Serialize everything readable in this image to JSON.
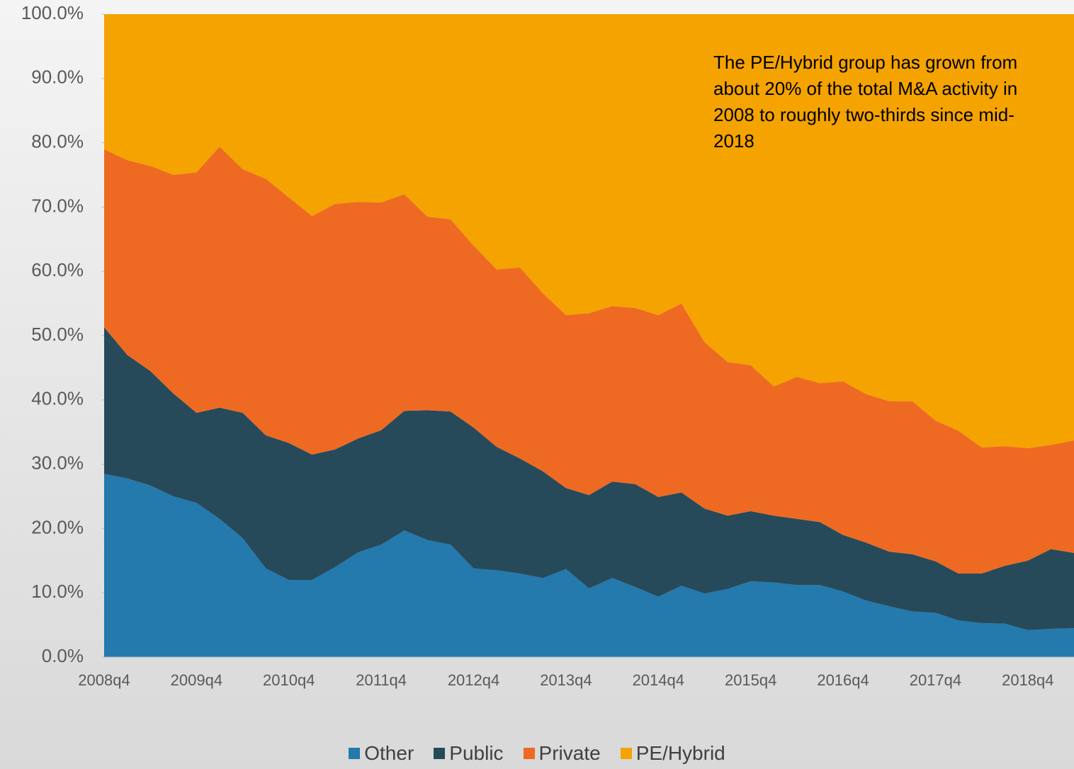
{
  "chart_data": {
    "type": "stacked_area",
    "annotation": "The PE/Hybrid group has grown from about 20% of the total M&A activity in 2008 to roughly two-thirds since mid-2018",
    "categories": [
      "2008q4",
      null,
      null,
      null,
      "2009q4",
      null,
      null,
      null,
      "2010q4",
      null,
      null,
      null,
      "2011q4",
      null,
      null,
      null,
      "2012q4",
      null,
      null,
      null,
      "2013q4",
      null,
      null,
      null,
      "2014q4",
      null,
      null,
      null,
      "2015q4",
      null,
      null,
      null,
      "2016q4",
      null,
      null,
      null,
      "2017q4",
      null,
      null,
      null,
      "2018q4",
      null,
      null
    ],
    "series": [
      {
        "name": "Other",
        "color": "#2479ad",
        "values": [
          28.5,
          27.8,
          26.7,
          25.0,
          24.0,
          21.5,
          18.5,
          13.8,
          12.0,
          12.0,
          14.0,
          16.3,
          17.5,
          19.7,
          18.2,
          17.5,
          13.8,
          13.5,
          13.0,
          12.3,
          13.7,
          10.7,
          12.3,
          10.9,
          9.4,
          11.1,
          9.9,
          10.6,
          11.8,
          11.6,
          11.2,
          11.2,
          10.2,
          8.8,
          7.9,
          7.1,
          6.9,
          5.7,
          5.3,
          5.2,
          4.2,
          4.4,
          4.5
        ]
      },
      {
        "name": "Public",
        "color": "#264a5a",
        "values": [
          22.8,
          19.2,
          17.8,
          16.0,
          14.0,
          17.3,
          19.5,
          20.7,
          21.3,
          19.5,
          18.3,
          17.7,
          17.8,
          18.6,
          20.2,
          20.7,
          21.9,
          19.2,
          17.9,
          16.6,
          12.6,
          14.5,
          15.0,
          16.0,
          15.5,
          14.5,
          13.2,
          11.4,
          10.9,
          10.4,
          10.3,
          9.8,
          8.8,
          9.0,
          8.5,
          8.9,
          8.0,
          7.3,
          7.7,
          9.0,
          10.8,
          12.4,
          11.7
        ]
      },
      {
        "name": "Private",
        "color": "#ee6a22",
        "values": [
          27.7,
          30.3,
          31.9,
          34.0,
          37.4,
          40.6,
          37.9,
          39.9,
          38.2,
          37.1,
          38.2,
          36.8,
          35.4,
          33.7,
          30.1,
          29.9,
          28.3,
          27.6,
          29.7,
          27.7,
          26.9,
          28.3,
          27.3,
          27.4,
          28.3,
          29.4,
          25.9,
          23.9,
          22.7,
          20.1,
          22.1,
          21.6,
          23.9,
          23.1,
          23.4,
          23.8,
          21.9,
          22.2,
          19.6,
          18.6,
          17.5,
          16.2,
          17.5
        ]
      },
      {
        "name": "PE/Hybrid",
        "color": "#f4a300",
        "values": [
          21.0,
          22.7,
          23.6,
          25.0,
          24.6,
          20.6,
          24.1,
          25.6,
          28.5,
          31.4,
          29.5,
          29.2,
          29.3,
          28.0,
          31.5,
          31.9,
          36.0,
          39.7,
          39.4,
          43.4,
          46.8,
          46.5,
          45.4,
          45.7,
          46.8,
          45.0,
          51.0,
          54.1,
          54.6,
          57.9,
          56.4,
          57.4,
          57.1,
          59.1,
          60.2,
          60.2,
          63.2,
          64.8,
          67.4,
          67.2,
          67.5,
          67.0,
          66.3
        ]
      }
    ],
    "ylim": [
      0,
      100
    ],
    "yticks": [
      {
        "value": 0,
        "label": "0.0%"
      },
      {
        "value": 10,
        "label": "10.0%"
      },
      {
        "value": 20,
        "label": "20.0%"
      },
      {
        "value": 30,
        "label": "30.0%"
      },
      {
        "value": 40,
        "label": "40.0%"
      },
      {
        "value": 50,
        "label": "50.0%"
      },
      {
        "value": 60,
        "label": "60.0%"
      },
      {
        "value": 70,
        "label": "70.0%"
      },
      {
        "value": 80,
        "label": "80.0%"
      },
      {
        "value": 90,
        "label": "90.0%"
      },
      {
        "value": 100,
        "label": "100.0%"
      }
    ],
    "legend": "bottom"
  }
}
